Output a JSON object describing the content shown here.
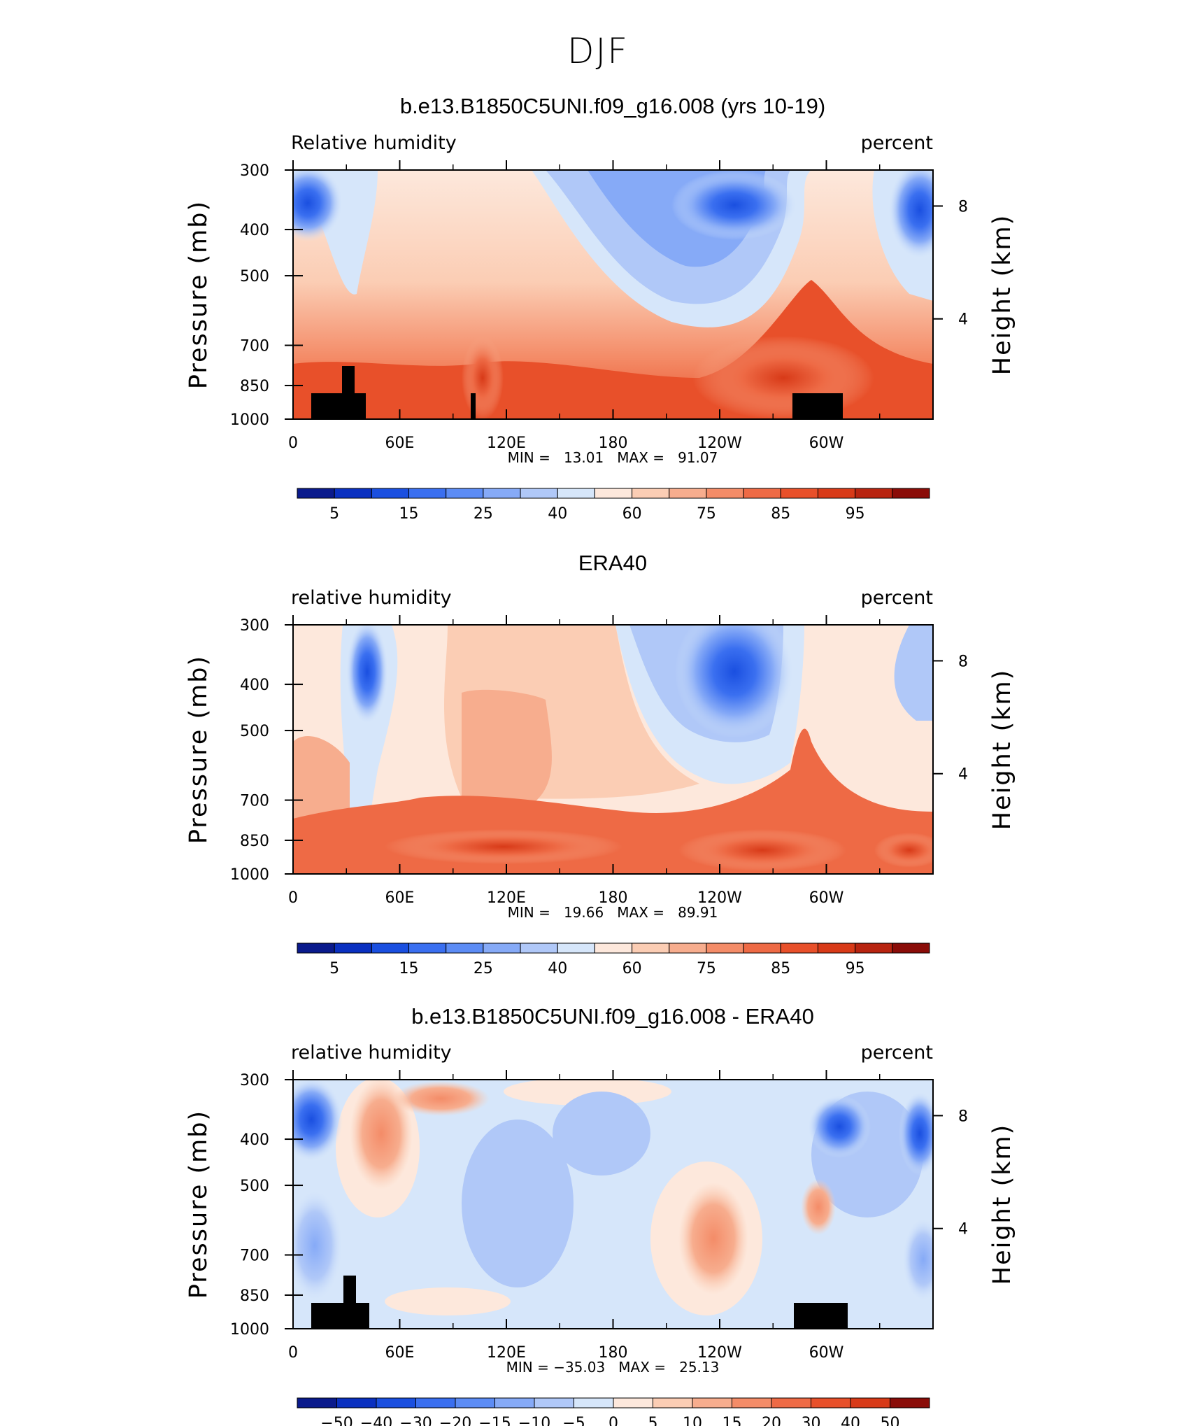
{
  "figure": {
    "title": "DJF"
  },
  "chart_data": [
    {
      "type": "heatmap",
      "title": "b.e13.B1850C5UNI.f09_g16.008 (yrs 10-19)",
      "left_label": "Relative humidity",
      "right_label": "percent",
      "ylabel": "Pressure (mb)",
      "y2label": "Height (km)",
      "x_ticks": [
        "0",
        "60E",
        "120E",
        "180",
        "120W",
        "60W"
      ],
      "y_ticks": [
        "300",
        "400",
        "500",
        "700",
        "850",
        "1000"
      ],
      "y2_ticks": [
        "8",
        "4"
      ],
      "stats": "MIN =   13.01   MAX =   91.07",
      "colorbar_labels": [
        "5",
        "15",
        "25",
        "40",
        "60",
        "75",
        "85",
        "95"
      ],
      "colorbar_colors": [
        "#0a1a8c",
        "#0a30c0",
        "#1a4fe0",
        "#3a6ff0",
        "#5c8cf5",
        "#86aaf7",
        "#b0c8f8",
        "#d6e6fa",
        "#fde8dc",
        "#fbcdb4",
        "#f7ad8e",
        "#f48c68",
        "#ee6a45",
        "#e8502a",
        "#d83a18",
        "#b82410",
        "#8a0c08"
      ],
      "data_range": [
        13.01,
        91.07
      ]
    },
    {
      "type": "heatmap",
      "title": "ERA40",
      "left_label": "relative humidity",
      "right_label": "percent",
      "ylabel": "Pressure (mb)",
      "y2label": "Height (km)",
      "x_ticks": [
        "0",
        "60E",
        "120E",
        "180",
        "120W",
        "60W"
      ],
      "y_ticks": [
        "300",
        "400",
        "500",
        "700",
        "850",
        "1000"
      ],
      "y2_ticks": [
        "8",
        "4"
      ],
      "stats": "MIN =   19.66   MAX =   89.91",
      "colorbar_labels": [
        "5",
        "15",
        "25",
        "40",
        "60",
        "75",
        "85",
        "95"
      ],
      "colorbar_colors": [
        "#0a1a8c",
        "#0a30c0",
        "#1a4fe0",
        "#3a6ff0",
        "#5c8cf5",
        "#86aaf7",
        "#b0c8f8",
        "#d6e6fa",
        "#fde8dc",
        "#fbcdb4",
        "#f7ad8e",
        "#f48c68",
        "#ee6a45",
        "#e8502a",
        "#d83a18",
        "#b82410",
        "#8a0c08"
      ],
      "data_range": [
        19.66,
        89.91
      ]
    },
    {
      "type": "heatmap",
      "title": "b.e13.B1850C5UNI.f09_g16.008 - ERA40",
      "left_label": "relative humidity",
      "right_label": "percent",
      "ylabel": "Pressure (mb)",
      "y2label": "Height (km)",
      "x_ticks": [
        "0",
        "60E",
        "120E",
        "180",
        "120W",
        "60W"
      ],
      "y_ticks": [
        "300",
        "400",
        "500",
        "700",
        "850",
        "1000"
      ],
      "y2_ticks": [
        "8",
        "4"
      ],
      "stats": "MIN = −35.03   MAX =   25.13",
      "colorbar_labels": [
        "−50",
        "−40",
        "−30",
        "−20",
        "−15",
        "−10",
        "−5",
        "0",
        "5",
        "10",
        "15",
        "20",
        "30",
        "40",
        "50"
      ],
      "colorbar_colors": [
        "#0a1a8c",
        "#0a30c0",
        "#1a4fe0",
        "#3a6ff0",
        "#5c8cf5",
        "#86aaf7",
        "#b0c8f8",
        "#d6e6fa",
        "#fde8dc",
        "#fbcdb4",
        "#f7ad8e",
        "#f48c68",
        "#ee6a45",
        "#e8502a",
        "#d83a18",
        "#8a0c08"
      ],
      "data_range": [
        -35.03,
        25.13
      ]
    }
  ]
}
